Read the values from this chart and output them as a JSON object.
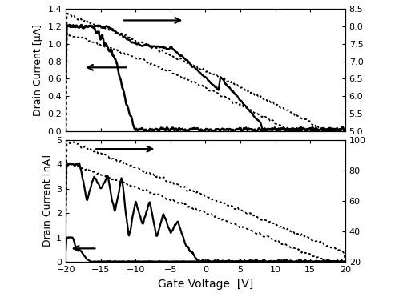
{
  "top": {
    "ylabel_left": "Drain Current [μA]",
    "ylim_left": [
      0.0,
      1.4
    ],
    "ylim_right": [
      5.0,
      8.5
    ],
    "yticks_left": [
      0.0,
      0.2,
      0.4,
      0.6,
      0.8,
      1.0,
      1.2,
      1.4
    ],
    "yticks_right": [
      5.0,
      5.5,
      6.0,
      6.5,
      7.0,
      7.5,
      8.0,
      8.5
    ],
    "xlim": [
      -20,
      20
    ],
    "xticks": [
      -20,
      -15,
      -10,
      -5,
      0,
      5,
      10,
      15,
      20
    ]
  },
  "bottom": {
    "xlabel": "Gate Voltage  [V]",
    "ylabel_left": "Drain Current [nA]",
    "ylim_left": [
      0.0,
      5.0
    ],
    "ylim_right": [
      20,
      100
    ],
    "yticks_left": [
      0,
      1,
      2,
      3,
      4,
      5
    ],
    "yticks_right": [
      20,
      40,
      60,
      80,
      100
    ],
    "xlim": [
      -20,
      20
    ],
    "xticks": [
      -20,
      -15,
      -10,
      -5,
      0,
      5,
      10,
      15,
      20
    ]
  },
  "figsize": [
    4.98,
    3.76
  ],
  "dpi": 100
}
